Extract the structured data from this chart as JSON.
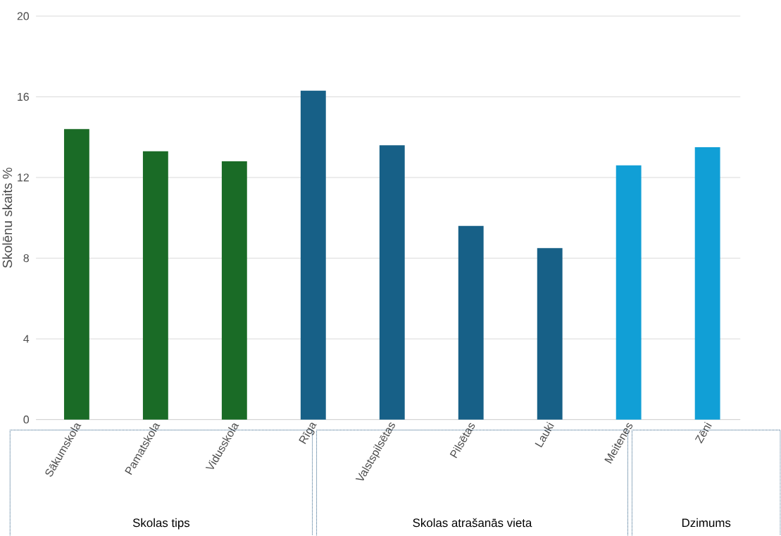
{
  "chart_data": {
    "type": "bar",
    "ylabel": "Skolēnu skaits %",
    "categories": [
      "Sākumskola",
      "Pamatskola",
      "Vidusskola",
      "Rīga",
      "Valstspilsētas",
      "Pilsētas",
      "Lauki",
      "Meitenes",
      "Zēni"
    ],
    "values": [
      14.4,
      13.3,
      12.8,
      16.3,
      13.6,
      9.6,
      8.5,
      12.6,
      13.5
    ],
    "colors": [
      "#1a6b26",
      "#1a6b26",
      "#1a6b26",
      "#176087",
      "#176087",
      "#176087",
      "#176087",
      "#119fd6",
      "#119fd6"
    ],
    "ylim": [
      0,
      20
    ],
    "yticks": [
      0,
      4,
      8,
      12,
      16,
      20
    ],
    "grid": "y",
    "annotations": [
      "Skolas tips",
      "Skolas atrašanās vieta",
      "Dzimums"
    ]
  }
}
